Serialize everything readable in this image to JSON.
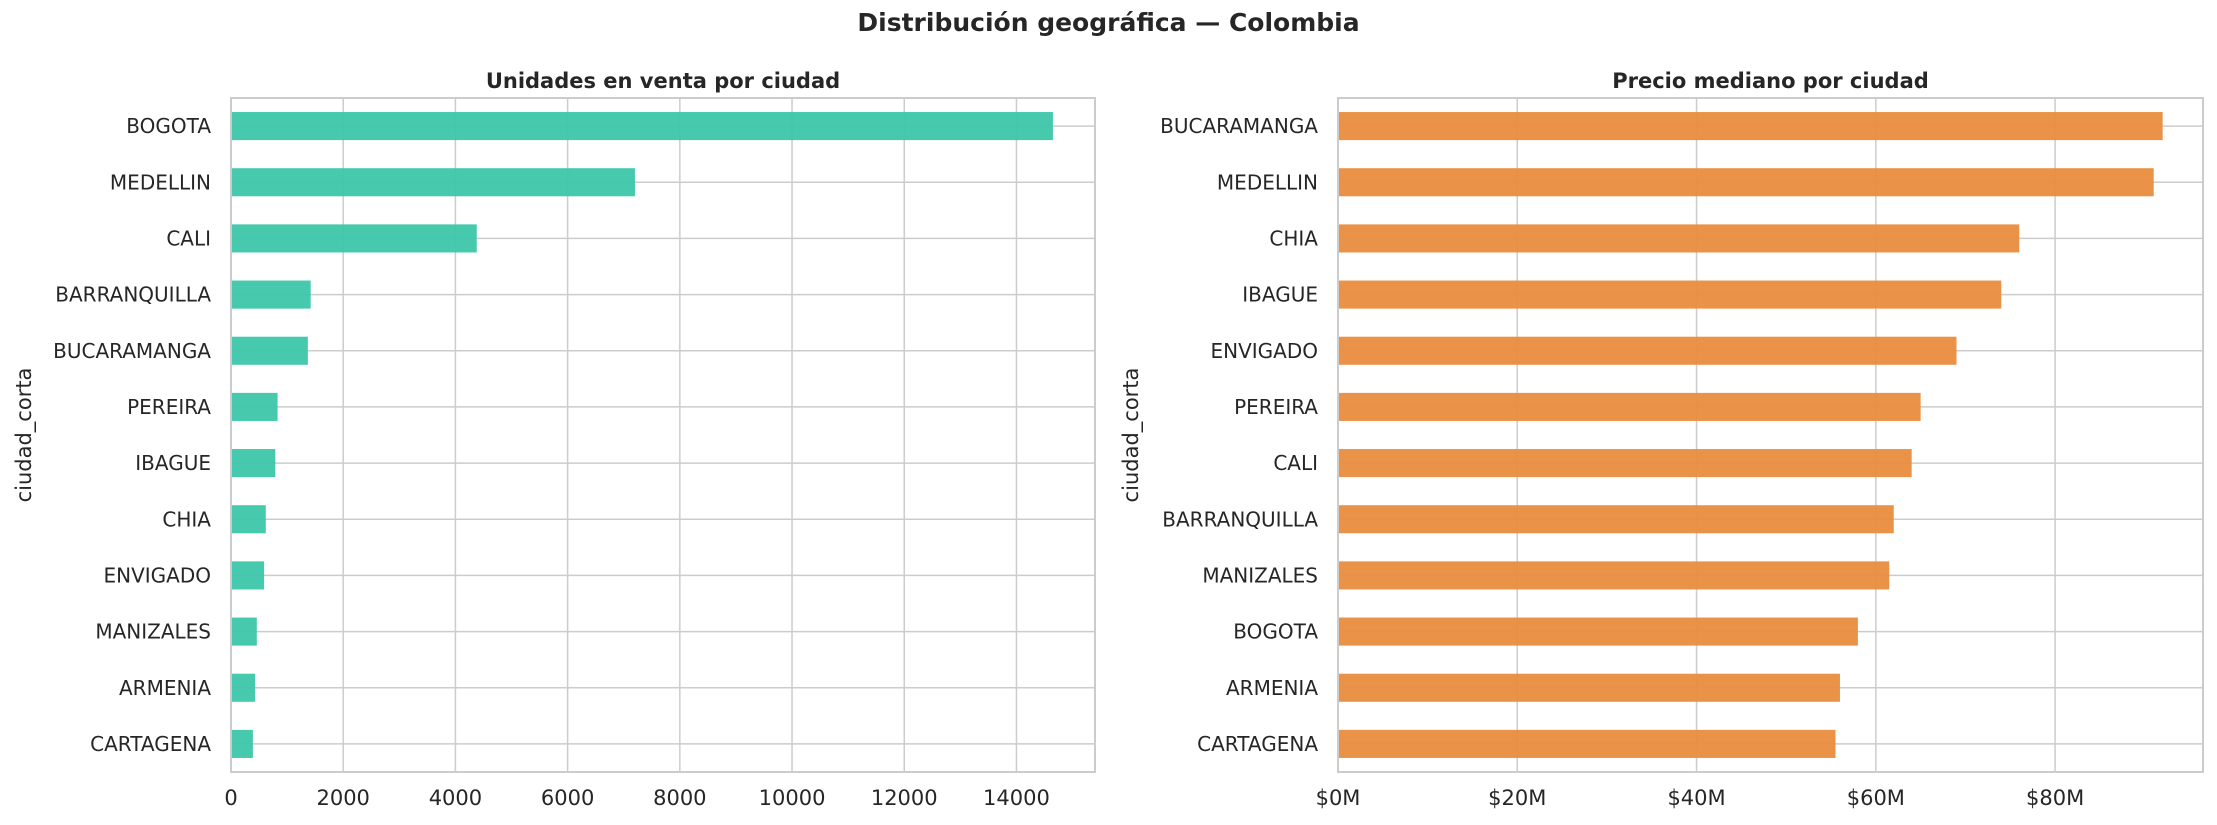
{
  "suptitle": "Distribución geográfica — Colombia",
  "colors": {
    "left_bar": "#3cc6a9",
    "right_bar": "#e98d3e",
    "grid": "#cccccc",
    "text": "#262626"
  },
  "chart_data": [
    {
      "type": "bar",
      "orientation": "horizontal",
      "title": "Unidades en venta por ciudad",
      "xlabel": "",
      "ylabel": "ciudad_corta",
      "xlim": [
        0,
        15400
      ],
      "xticks": [
        0,
        2000,
        4000,
        6000,
        8000,
        10000,
        12000,
        14000
      ],
      "xtick_labels": [
        "0",
        "2000",
        "4000",
        "6000",
        "8000",
        "10000",
        "12000",
        "14000"
      ],
      "grid": true,
      "categories": [
        "BOGOTA",
        "MEDELLIN",
        "CALI",
        "BARRANQUILLA",
        "BUCARAMANGA",
        "PEREIRA",
        "IBAGUE",
        "CHIA",
        "ENVIGADO",
        "MANIZALES",
        "ARMENIA",
        "CARTAGENA"
      ],
      "values": [
        14650,
        7200,
        4380,
        1420,
        1370,
        830,
        790,
        620,
        590,
        460,
        430,
        390
      ]
    },
    {
      "type": "bar",
      "orientation": "horizontal",
      "title": "Precio mediano por ciudad",
      "xlabel": "",
      "ylabel": "ciudad_corta",
      "xlim": [
        0,
        96500000
      ],
      "xticks": [
        0,
        20000000,
        40000000,
        60000000,
        80000000
      ],
      "xtick_labels": [
        "$0M",
        "$20M",
        "$40M",
        "$60M",
        "$80M"
      ],
      "grid": true,
      "categories": [
        "BUCARAMANGA",
        "MEDELLIN",
        "CHIA",
        "IBAGUE",
        "ENVIGADO",
        "PEREIRA",
        "CALI",
        "BARRANQUILLA",
        "MANIZALES",
        "BOGOTA",
        "ARMENIA",
        "CARTAGENA"
      ],
      "values": [
        92000000,
        91000000,
        76000000,
        74000000,
        69000000,
        65000000,
        64000000,
        62000000,
        61500000,
        58000000,
        56000000,
        55500000
      ]
    }
  ]
}
